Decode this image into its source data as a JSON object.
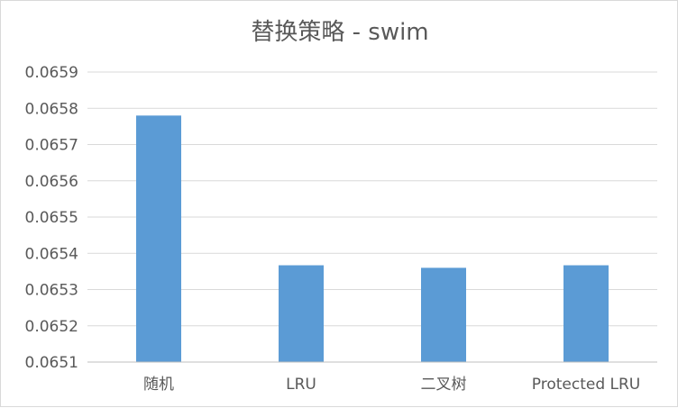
{
  "chart_data": {
    "type": "bar",
    "title": "替换策略 - swim",
    "xlabel": "",
    "ylabel": "",
    "categories": [
      "随机",
      "LRU",
      "二叉树",
      "Protected LRU"
    ],
    "values": [
      0.06578,
      0.065367,
      0.06536,
      0.065367
    ],
    "ylim": [
      0.0651,
      0.0659
    ],
    "yticks": [
      "0.0651",
      "0.0652",
      "0.0653",
      "0.0654",
      "0.0655",
      "0.0656",
      "0.0657",
      "0.0658",
      "0.0659"
    ],
    "grid": true,
    "legend": "none",
    "bar_color": "#5b9bd5"
  }
}
